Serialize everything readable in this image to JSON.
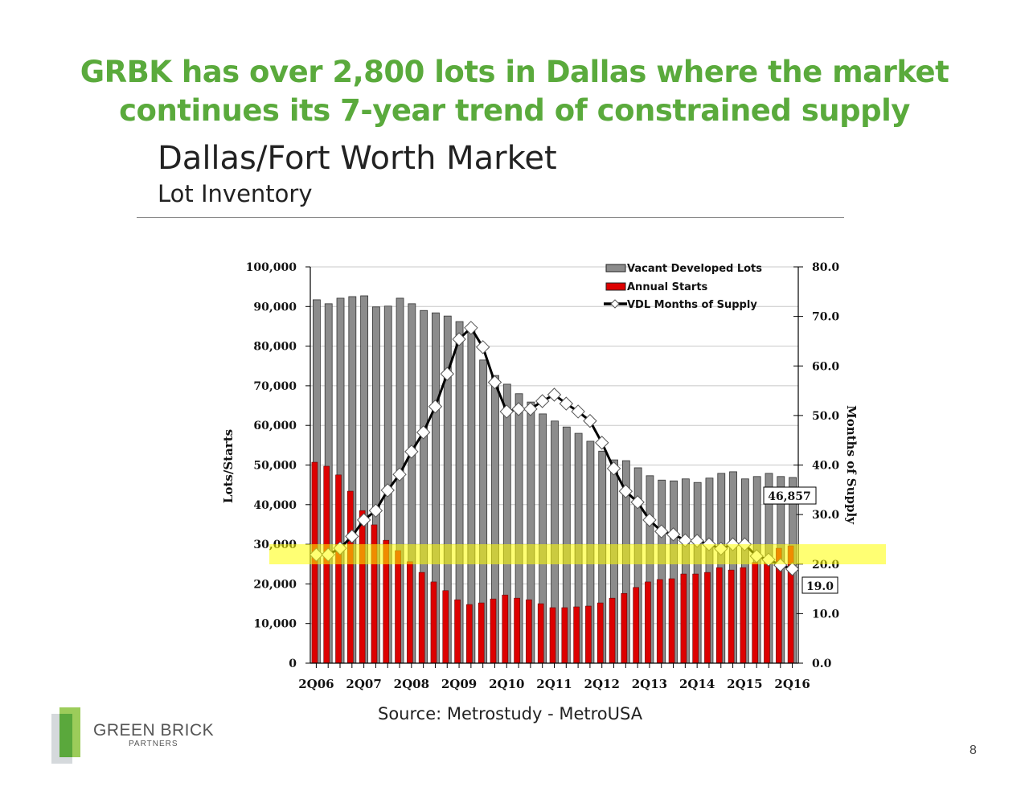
{
  "headline": [
    "GRBK has over 2,800 lots in Dallas where the market",
    "continues its 7-year trend of constrained supply"
  ],
  "market_title": "Dallas/Fort Worth Market",
  "market_subtitle": "Lot Inventory",
  "source": "Source: Metrostudy - MetroUSA",
  "logo": {
    "name": "GREEN BRICK",
    "sub": "PARTNERS"
  },
  "page_number": "8",
  "colors": {
    "gray_bar": "#8c8c8c",
    "red_bar": "#dd0000",
    "highlight": "#ffff00",
    "headline": "#5aaa3c"
  },
  "chart_data": {
    "type": "bar",
    "ylabel": "Lots/Starts",
    "y2label": "Months of Supply",
    "ylim": [
      0,
      100000
    ],
    "y2lim": [
      0,
      80
    ],
    "yticks": [
      "0",
      "10,000",
      "20,000",
      "30,000",
      "40,000",
      "50,000",
      "60,000",
      "70,000",
      "80,000",
      "90,000",
      "100,000"
    ],
    "y2ticks": [
      "0.0",
      "10.0",
      "20.0",
      "30.0",
      "40.0",
      "50.0",
      "60.0",
      "70.0",
      "80.0"
    ],
    "xtick_labels": [
      "2Q06",
      "2Q07",
      "2Q08",
      "2Q09",
      "2Q10",
      "2Q11",
      "2Q12",
      "2Q13",
      "2Q14",
      "2Q15",
      "2Q16"
    ],
    "grid": true,
    "legend_position": "top-right",
    "legend": [
      "Vacant Developed Lots",
      "Annual Starts",
      "VDL Months of Supply"
    ],
    "categories": [
      "2Q06",
      "3Q06",
      "4Q06",
      "1Q07",
      "2Q07",
      "3Q07",
      "4Q07",
      "1Q08",
      "2Q08",
      "3Q08",
      "4Q08",
      "1Q09",
      "2Q09",
      "3Q09",
      "4Q09",
      "1Q10",
      "2Q10",
      "3Q10",
      "4Q10",
      "1Q11",
      "2Q11",
      "3Q11",
      "4Q11",
      "1Q12",
      "2Q12",
      "3Q12",
      "4Q12",
      "1Q13",
      "2Q13",
      "3Q13",
      "4Q13",
      "1Q14",
      "2Q14",
      "3Q14",
      "4Q14",
      "1Q15",
      "2Q15",
      "3Q15",
      "4Q15",
      "1Q16",
      "2Q16"
    ],
    "series": [
      {
        "name": "Vacant Developed Lots",
        "axis": "left",
        "type": "bar",
        "values": [
          91700,
          90700,
          92100,
          92500,
          92700,
          89900,
          90100,
          92100,
          90700,
          89000,
          88400,
          87600,
          86200,
          84200,
          76500,
          72600,
          70400,
          68000,
          65900,
          62900,
          61100,
          59600,
          58000,
          56000,
          53500,
          51300,
          51100,
          49300,
          47300,
          46200,
          46000,
          46500,
          45600,
          46700,
          47900,
          48300,
          46500,
          47100,
          47900,
          47100,
          46857
        ]
      },
      {
        "name": "Annual Starts",
        "axis": "left",
        "type": "bar",
        "values": [
          50700,
          49700,
          47500,
          43400,
          38500,
          34900,
          31000,
          28400,
          25600,
          22900,
          20500,
          18300,
          16000,
          14800,
          15200,
          16200,
          17200,
          16400,
          16000,
          15000,
          14000,
          14000,
          14200,
          14400,
          15200,
          16400,
          17600,
          19100,
          20500,
          21100,
          21300,
          22500,
          22500,
          22900,
          24100,
          23500,
          24100,
          25400,
          25400,
          29000,
          29600
        ]
      },
      {
        "name": "VDL Months of Supply",
        "axis": "right",
        "type": "line",
        "values": [
          21.9,
          21.9,
          23.2,
          25.6,
          28.9,
          30.8,
          34.9,
          38.1,
          42.7,
          46.6,
          51.8,
          58.4,
          65.4,
          67.7,
          63.8,
          56.7,
          50.8,
          51.3,
          51.3,
          52.9,
          54.2,
          52.4,
          50.8,
          48.9,
          44.5,
          39.3,
          34.7,
          32.5,
          28.9,
          26.6,
          26.0,
          24.8,
          24.7,
          24.0,
          23.1,
          24.0,
          24.0,
          21.6,
          20.9,
          19.8,
          19.0
        ]
      }
    ],
    "annotations": [
      "46,857",
      "19.0"
    ]
  }
}
